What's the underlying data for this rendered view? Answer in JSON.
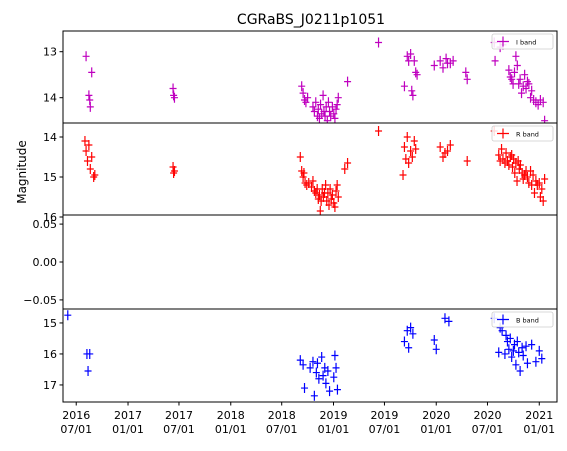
{
  "chart_data": {
    "type": "scatter",
    "title": "CGRaBS_J0211p1051",
    "ylabel": "Magnitude",
    "xlabel": "",
    "x_ticks": [
      {
        "year": "2016",
        "date": "07/01",
        "x": "2016-07-01"
      },
      {
        "year": "2017",
        "date": "01/01",
        "x": "2017-01-01"
      },
      {
        "year": "2017",
        "date": "07/01",
        "x": "2017-07-01"
      },
      {
        "year": "2018",
        "date": "01/01",
        "x": "2018-01-01"
      },
      {
        "year": "2018",
        "date": "07/01",
        "x": "2018-07-01"
      },
      {
        "year": "2019",
        "date": "01/01",
        "x": "2019-01-01"
      },
      {
        "year": "2019",
        "date": "07/01",
        "x": "2019-07-01"
      },
      {
        "year": "2020",
        "date": "01/01",
        "x": "2020-01-01"
      },
      {
        "year": "2020",
        "date": "07/01",
        "x": "2020-07-01"
      },
      {
        "year": "2021",
        "date": "01/01",
        "x": "2021-01-01"
      }
    ],
    "xlim": [
      "2016-05-15",
      "2021-03-05"
    ],
    "panels": [
      {
        "band": "I band",
        "color": "#bf00bf",
        "ylim": [
          12.55,
          14.55
        ],
        "inverted": true,
        "yticks": [
          {
            "v": 13,
            "label": "13"
          },
          {
            "v": 14,
            "label": "14"
          }
        ],
        "points": [
          [
            "2016-08-05",
            13.1
          ],
          [
            "2016-08-15",
            13.95
          ],
          [
            "2016-08-18",
            14.05
          ],
          [
            "2016-08-20",
            14.2
          ],
          [
            "2016-08-25",
            13.45
          ],
          [
            "2017-06-10",
            13.8
          ],
          [
            "2017-06-12",
            13.95
          ],
          [
            "2017-06-15",
            14.0
          ],
          [
            "2018-09-10",
            13.75
          ],
          [
            "2018-09-15",
            13.9
          ],
          [
            "2018-09-20",
            14.05
          ],
          [
            "2018-09-25",
            14.1
          ],
          [
            "2018-10-01",
            14.0
          ],
          [
            "2018-10-20",
            14.2
          ],
          [
            "2018-10-25",
            14.3
          ],
          [
            "2018-10-30",
            14.1
          ],
          [
            "2018-11-05",
            14.4
          ],
          [
            "2018-11-08",
            14.25
          ],
          [
            "2018-11-12",
            14.45
          ],
          [
            "2018-11-16",
            14.15
          ],
          [
            "2018-11-20",
            14.35
          ],
          [
            "2018-11-25",
            13.95
          ],
          [
            "2018-11-28",
            14.3
          ],
          [
            "2018-12-02",
            14.4
          ],
          [
            "2018-12-06",
            14.2
          ],
          [
            "2018-12-10",
            14.5
          ],
          [
            "2018-12-14",
            14.1
          ],
          [
            "2018-12-18",
            14.3
          ],
          [
            "2018-12-22",
            14.4
          ],
          [
            "2018-12-28",
            14.2
          ],
          [
            "2019-01-02",
            14.35
          ],
          [
            "2019-01-06",
            14.45
          ],
          [
            "2019-01-10",
            14.25
          ],
          [
            "2019-01-14",
            14.15
          ],
          [
            "2019-01-18",
            14.0
          ],
          [
            "2019-02-20",
            13.65
          ],
          [
            "2019-06-10",
            12.8
          ],
          [
            "2019-09-10",
            13.75
          ],
          [
            "2019-09-20",
            13.1
          ],
          [
            "2019-09-25",
            13.2
          ],
          [
            "2019-10-02",
            13.05
          ],
          [
            "2019-10-06",
            13.85
          ],
          [
            "2019-10-10",
            13.95
          ],
          [
            "2019-10-15",
            13.2
          ],
          [
            "2019-10-20",
            13.45
          ],
          [
            "2019-10-25",
            13.5
          ],
          [
            "2019-12-25",
            13.3
          ],
          [
            "2020-01-15",
            13.2
          ],
          [
            "2020-01-25",
            13.35
          ],
          [
            "2020-02-05",
            13.15
          ],
          [
            "2020-02-10",
            13.25
          ],
          [
            "2020-02-20",
            13.25
          ],
          [
            "2020-03-01",
            13.2
          ],
          [
            "2020-04-15",
            13.45
          ],
          [
            "2020-04-20",
            13.6
          ],
          [
            "2020-07-25",
            12.8
          ],
          [
            "2020-07-28",
            13.2
          ],
          [
            "2020-08-15",
            12.9
          ],
          [
            "2020-08-25",
            12.85
          ],
          [
            "2020-09-15",
            13.4
          ],
          [
            "2020-09-20",
            13.55
          ],
          [
            "2020-09-25",
            13.6
          ],
          [
            "2020-09-30",
            13.7
          ],
          [
            "2020-10-05",
            13.45
          ],
          [
            "2020-10-10",
            13.1
          ],
          [
            "2020-10-15",
            13.3
          ],
          [
            "2020-10-20",
            13.7
          ],
          [
            "2020-10-25",
            13.6
          ],
          [
            "2020-10-30",
            13.9
          ],
          [
            "2020-11-05",
            13.75
          ],
          [
            "2020-11-10",
            13.5
          ],
          [
            "2020-11-15",
            13.8
          ],
          [
            "2020-11-20",
            13.65
          ],
          [
            "2020-11-25",
            13.7
          ],
          [
            "2020-12-01",
            14.0
          ],
          [
            "2020-12-05",
            13.85
          ],
          [
            "2020-12-12",
            14.05
          ],
          [
            "2020-12-20",
            14.1
          ],
          [
            "2020-12-28",
            14.15
          ],
          [
            "2021-01-05",
            14.05
          ],
          [
            "2021-01-15",
            14.1
          ],
          [
            "2021-01-20",
            14.5
          ]
        ]
      },
      {
        "band": "R band",
        "color": "#ff0000",
        "ylim": [
          13.65,
          15.95
        ],
        "inverted": true,
        "yticks": [
          {
            "v": 14,
            "label": "14"
          },
          {
            "v": 15,
            "label": "15"
          },
          {
            "v": 16,
            "label": "16"
          }
        ],
        "points": [
          [
            "2016-08-01",
            14.1
          ],
          [
            "2016-08-05",
            14.35
          ],
          [
            "2016-08-10",
            14.6
          ],
          [
            "2016-08-15",
            14.2
          ],
          [
            "2016-08-20",
            14.8
          ],
          [
            "2016-08-25",
            14.5
          ],
          [
            "2016-09-01",
            15.0
          ],
          [
            "2016-09-05",
            14.95
          ],
          [
            "2017-06-10",
            14.75
          ],
          [
            "2017-06-12",
            14.9
          ],
          [
            "2017-06-15",
            14.85
          ],
          [
            "2018-09-05",
            14.5
          ],
          [
            "2018-09-10",
            14.85
          ],
          [
            "2018-09-15",
            15.0
          ],
          [
            "2018-09-18",
            14.9
          ],
          [
            "2018-09-22",
            15.15
          ],
          [
            "2018-09-28",
            15.2
          ],
          [
            "2018-10-05",
            15.15
          ],
          [
            "2018-10-15",
            15.25
          ],
          [
            "2018-10-20",
            15.1
          ],
          [
            "2018-10-25",
            15.35
          ],
          [
            "2018-10-30",
            15.4
          ],
          [
            "2018-11-04",
            15.3
          ],
          [
            "2018-11-08",
            15.55
          ],
          [
            "2018-11-12",
            15.45
          ],
          [
            "2018-11-15",
            15.85
          ],
          [
            "2018-11-18",
            15.6
          ],
          [
            "2018-11-22",
            15.3
          ],
          [
            "2018-11-26",
            15.5
          ],
          [
            "2018-11-30",
            15.4
          ],
          [
            "2018-12-04",
            15.2
          ],
          [
            "2018-12-08",
            15.6
          ],
          [
            "2018-12-12",
            15.4
          ],
          [
            "2018-12-16",
            15.7
          ],
          [
            "2018-12-20",
            15.3
          ],
          [
            "2018-12-24",
            15.55
          ],
          [
            "2018-12-28",
            15.45
          ],
          [
            "2019-01-02",
            15.65
          ],
          [
            "2019-01-06",
            15.75
          ],
          [
            "2019-01-10",
            15.35
          ],
          [
            "2019-01-14",
            15.2
          ],
          [
            "2019-01-18",
            15.5
          ],
          [
            "2019-02-10",
            14.8
          ],
          [
            "2019-02-20",
            14.65
          ],
          [
            "2019-06-10",
            13.85
          ],
          [
            "2019-09-05",
            14.95
          ],
          [
            "2019-09-10",
            14.25
          ],
          [
            "2019-09-15",
            14.55
          ],
          [
            "2019-09-20",
            14.0
          ],
          [
            "2019-09-25",
            14.65
          ],
          [
            "2019-10-02",
            14.35
          ],
          [
            "2019-10-08",
            14.5
          ],
          [
            "2019-10-15",
            14.1
          ],
          [
            "2019-10-20",
            14.3
          ],
          [
            "2020-01-15",
            14.25
          ],
          [
            "2020-01-25",
            14.5
          ],
          [
            "2020-02-01",
            14.4
          ],
          [
            "2020-02-10",
            14.35
          ],
          [
            "2020-02-20",
            14.2
          ],
          [
            "2020-04-20",
            14.6
          ],
          [
            "2020-07-25",
            13.85
          ],
          [
            "2020-08-10",
            14.45
          ],
          [
            "2020-08-15",
            14.6
          ],
          [
            "2020-08-20",
            14.3
          ],
          [
            "2020-08-25",
            14.55
          ],
          [
            "2020-09-01",
            14.65
          ],
          [
            "2020-09-05",
            14.4
          ],
          [
            "2020-09-10",
            14.6
          ],
          [
            "2020-09-15",
            14.7
          ],
          [
            "2020-09-20",
            14.5
          ],
          [
            "2020-09-25",
            14.45
          ],
          [
            "2020-09-28",
            14.75
          ],
          [
            "2020-10-02",
            14.55
          ],
          [
            "2020-10-06",
            14.9
          ],
          [
            "2020-10-10",
            14.65
          ],
          [
            "2020-10-14",
            15.1
          ],
          [
            "2020-10-18",
            14.6
          ],
          [
            "2020-10-22",
            14.8
          ],
          [
            "2020-10-26",
            14.7
          ],
          [
            "2020-11-01",
            14.9
          ],
          [
            "2020-11-05",
            15.05
          ],
          [
            "2020-11-10",
            14.95
          ],
          [
            "2020-11-15",
            14.85
          ],
          [
            "2020-11-20",
            15.0
          ],
          [
            "2020-11-25",
            15.15
          ],
          [
            "2020-12-01",
            14.85
          ],
          [
            "2020-12-05",
            15.2
          ],
          [
            "2020-12-10",
            14.95
          ],
          [
            "2020-12-15",
            15.4
          ],
          [
            "2020-12-20",
            15.1
          ],
          [
            "2020-12-25",
            15.2
          ],
          [
            "2021-01-01",
            15.15
          ],
          [
            "2021-01-05",
            15.5
          ],
          [
            "2021-01-10",
            15.3
          ],
          [
            "2021-01-15",
            15.6
          ],
          [
            "2021-01-20",
            15.05
          ]
        ]
      },
      {
        "band": "",
        "color": "#000000",
        "ylim": [
          -0.062,
          0.062
        ],
        "inverted": false,
        "yticks": [
          {
            "v": 0.05,
            "label": "0.05"
          },
          {
            "v": 0.0,
            "label": "0.00"
          },
          {
            "v": -0.05,
            "label": "−0.05"
          }
        ],
        "points": []
      },
      {
        "band": "B band",
        "color": "#0000ff",
        "ylim": [
          14.55,
          17.55
        ],
        "inverted": true,
        "yticks": [
          {
            "v": 15,
            "label": "15"
          },
          {
            "v": 16,
            "label": "16"
          },
          {
            "v": 17,
            "label": "17"
          }
        ],
        "points": [
          [
            "2016-06-01",
            14.75
          ],
          [
            "2016-08-08",
            16.0
          ],
          [
            "2016-08-12",
            16.55
          ],
          [
            "2016-08-18",
            16.0
          ],
          [
            "2018-09-05",
            16.2
          ],
          [
            "2018-09-15",
            16.35
          ],
          [
            "2018-09-20",
            17.1
          ],
          [
            "2018-10-10",
            16.45
          ],
          [
            "2018-10-20",
            16.25
          ],
          [
            "2018-10-25",
            17.35
          ],
          [
            "2018-11-01",
            16.6
          ],
          [
            "2018-11-05",
            16.3
          ],
          [
            "2018-11-10",
            16.8
          ],
          [
            "2018-11-20",
            16.1
          ],
          [
            "2018-11-25",
            16.7
          ],
          [
            "2018-12-01",
            16.45
          ],
          [
            "2018-12-05",
            16.95
          ],
          [
            "2018-12-12",
            16.55
          ],
          [
            "2018-12-18",
            17.2
          ],
          [
            "2019-01-02",
            16.75
          ],
          [
            "2019-01-06",
            16.05
          ],
          [
            "2019-01-10",
            16.45
          ],
          [
            "2019-01-15",
            17.15
          ],
          [
            "2019-09-10",
            15.6
          ],
          [
            "2019-09-20",
            15.25
          ],
          [
            "2019-09-25",
            15.8
          ],
          [
            "2019-10-02",
            15.15
          ],
          [
            "2019-10-10",
            15.35
          ],
          [
            "2019-12-25",
            15.55
          ],
          [
            "2020-01-01",
            15.85
          ],
          [
            "2020-02-01",
            14.85
          ],
          [
            "2020-02-15",
            14.95
          ],
          [
            "2020-07-25",
            14.85
          ],
          [
            "2020-08-10",
            15.95
          ],
          [
            "2020-08-15",
            15.15
          ],
          [
            "2020-08-22",
            15.25
          ],
          [
            "2020-09-01",
            16.0
          ],
          [
            "2020-09-05",
            15.4
          ],
          [
            "2020-09-10",
            15.6
          ],
          [
            "2020-09-15",
            15.85
          ],
          [
            "2020-09-20",
            15.5
          ],
          [
            "2020-09-25",
            16.1
          ],
          [
            "2020-10-01",
            15.9
          ],
          [
            "2020-10-05",
            15.7
          ],
          [
            "2020-10-10",
            16.35
          ],
          [
            "2020-10-15",
            15.6
          ],
          [
            "2020-10-20",
            15.95
          ],
          [
            "2020-10-25",
            16.55
          ],
          [
            "2020-11-01",
            15.8
          ],
          [
            "2020-11-05",
            16.05
          ],
          [
            "2020-11-15",
            15.75
          ],
          [
            "2020-11-20",
            16.3
          ],
          [
            "2020-12-05",
            15.7
          ],
          [
            "2020-12-20",
            16.25
          ],
          [
            "2021-01-01",
            15.9
          ],
          [
            "2021-01-10",
            16.15
          ]
        ]
      }
    ]
  }
}
